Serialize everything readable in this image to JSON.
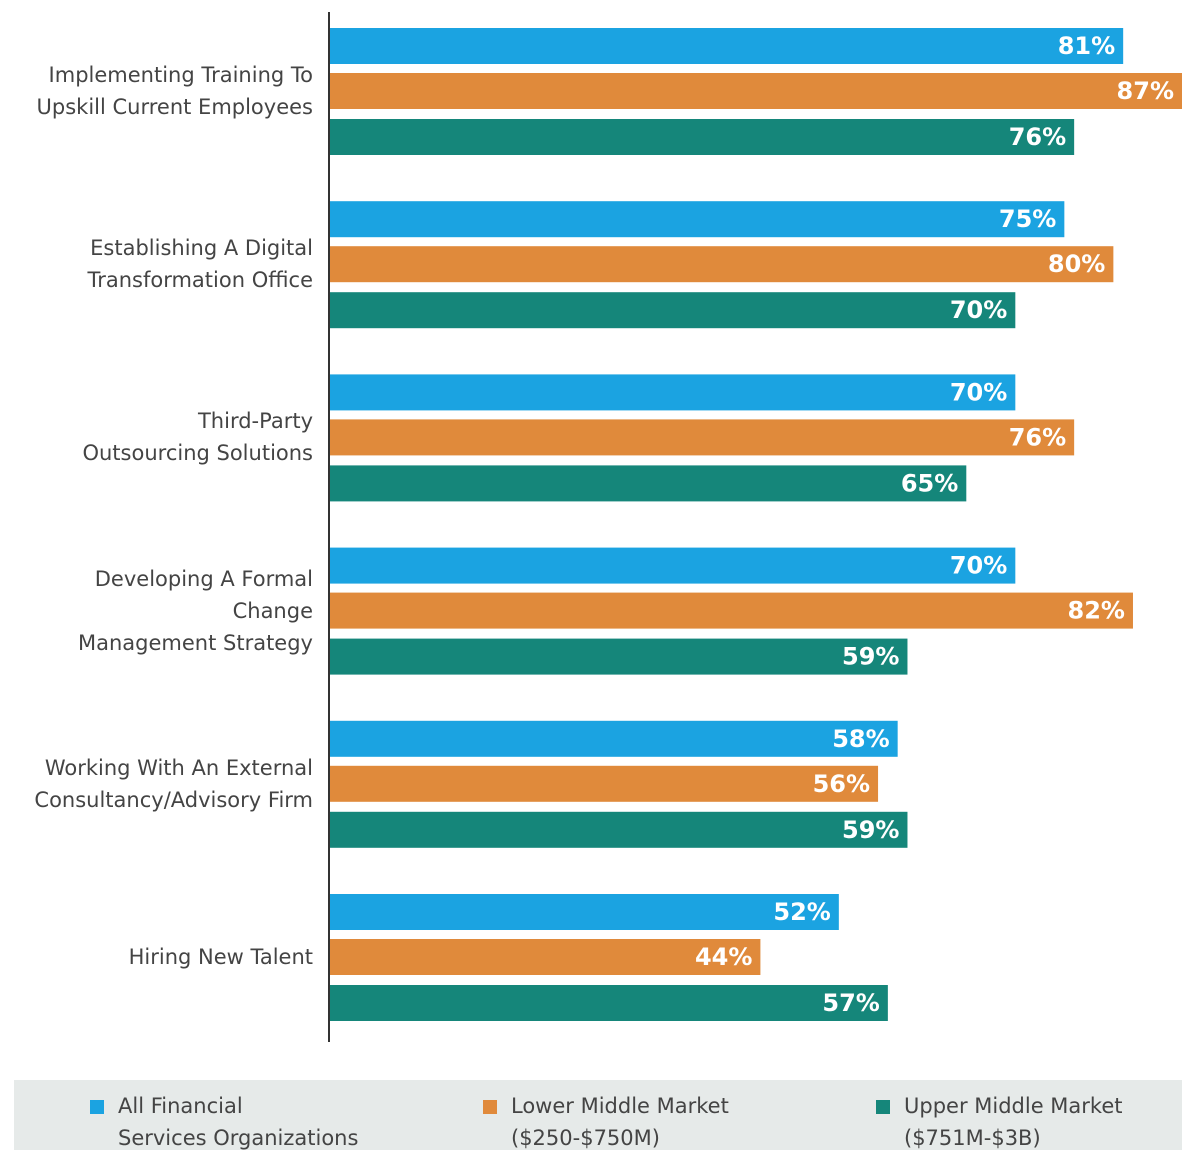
{
  "chart_data": {
    "type": "hbar",
    "categories": [
      "Implementing Training To\nUpskill Current Employees",
      "Establishing A Digital\nTransformation Office",
      "Third-Party\nOutsourcing Solutions",
      "Developing A Formal Change\nManagement Strategy",
      "Working With An External\nConsultancy/Advisory Firm",
      "Hiring New Talent"
    ],
    "series": [
      {
        "name": "All Financial\nServices Organizations",
        "color": "#1ba3e1",
        "values": [
          81,
          75,
          70,
          70,
          58,
          52
        ],
        "value_labels": [
          "81%",
          "75%",
          "70%",
          "70%",
          "58%",
          "52%"
        ]
      },
      {
        "name": "Lower Middle Market\n($250-$750M)",
        "color": "#e08a3b",
        "values": [
          87,
          80,
          76,
          82,
          56,
          44
        ],
        "value_labels": [
          "87%",
          "80%",
          "76%",
          "82%",
          "56%",
          "44%"
        ]
      },
      {
        "name": "Upper Middle Market\n($751M-$3B)",
        "color": "#15867a",
        "values": [
          76,
          70,
          65,
          59,
          59,
          57
        ],
        "value_labels": [
          "76%",
          "70%",
          "65%",
          "59%",
          "59%",
          "57%"
        ]
      }
    ],
    "xlim": [
      0,
      87
    ],
    "legend": "bottom"
  }
}
